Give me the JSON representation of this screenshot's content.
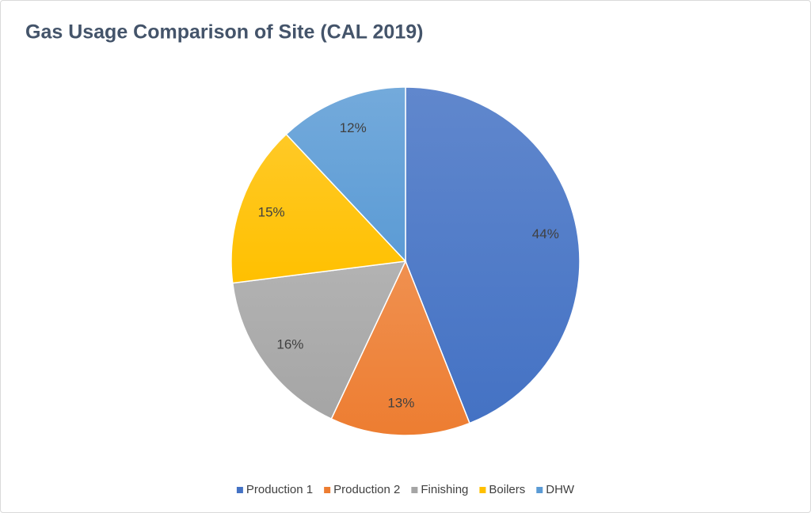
{
  "chart_data": {
    "type": "pie",
    "title": "Gas Usage Comparison of Site (CAL 2019)",
    "categories": [
      "Production 1",
      "Production 2",
      "Finishing",
      "Boilers",
      "DHW"
    ],
    "values": [
      44,
      13,
      16,
      15,
      12
    ],
    "value_labels": [
      "44%",
      "13%",
      "16%",
      "15%",
      "12%"
    ],
    "colors": [
      "#4472c4",
      "#ed7d31",
      "#a5a5a5",
      "#ffc000",
      "#5b9bd5"
    ],
    "legend": "bottom"
  }
}
